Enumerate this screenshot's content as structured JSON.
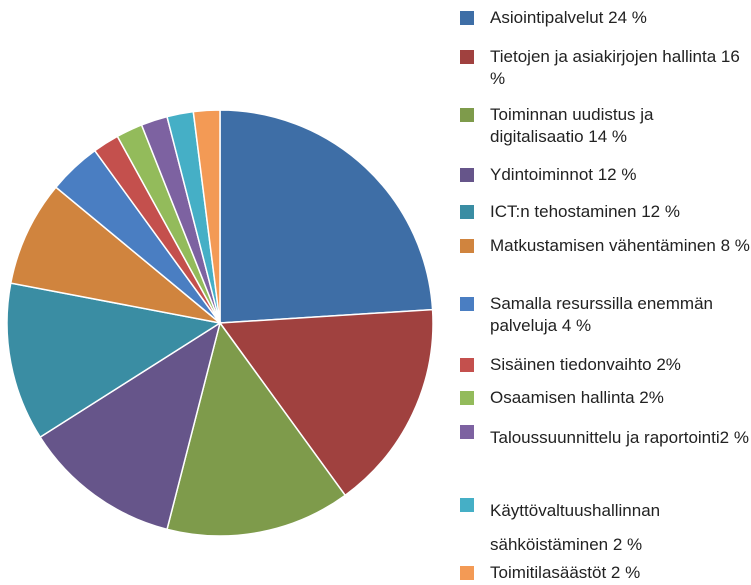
{
  "chart_data": {
    "type": "pie",
    "categories": [
      "Asiointipalvelut 24 %",
      "Tietojen ja asiakirjojen hallinta 16 %",
      "Toiminnan uudistus ja digitalisaatio 14 %",
      "Ydintoiminnot 12 %",
      "ICT:n tehostaminen 12 %",
      "Matkustamisen vähentäminen 8 %",
      "Samalla resurssilla enemmän palveluja 4 %",
      "Sisäinen tiedonvaihto 2%",
      "Osaamisen hallinta 2%",
      "Taloussuunnittelu ja raportointi2 %",
      "Käyttövaltuushallinnan sähköistäminen 2 %",
      "Toimitilasäästöt 2 %"
    ],
    "values": [
      24,
      16,
      14,
      12,
      12,
      8,
      4,
      2,
      2,
      2,
      2,
      2
    ],
    "colors": [
      "#3e6ea6",
      "#a0413f",
      "#7e9b4b",
      "#66558a",
      "#3a8da3",
      "#d0843e",
      "#4a7ec2",
      "#c4504d",
      "#93bb5b",
      "#7d62a1",
      "#45afc6",
      "#f39a55"
    ],
    "legend": "right"
  }
}
